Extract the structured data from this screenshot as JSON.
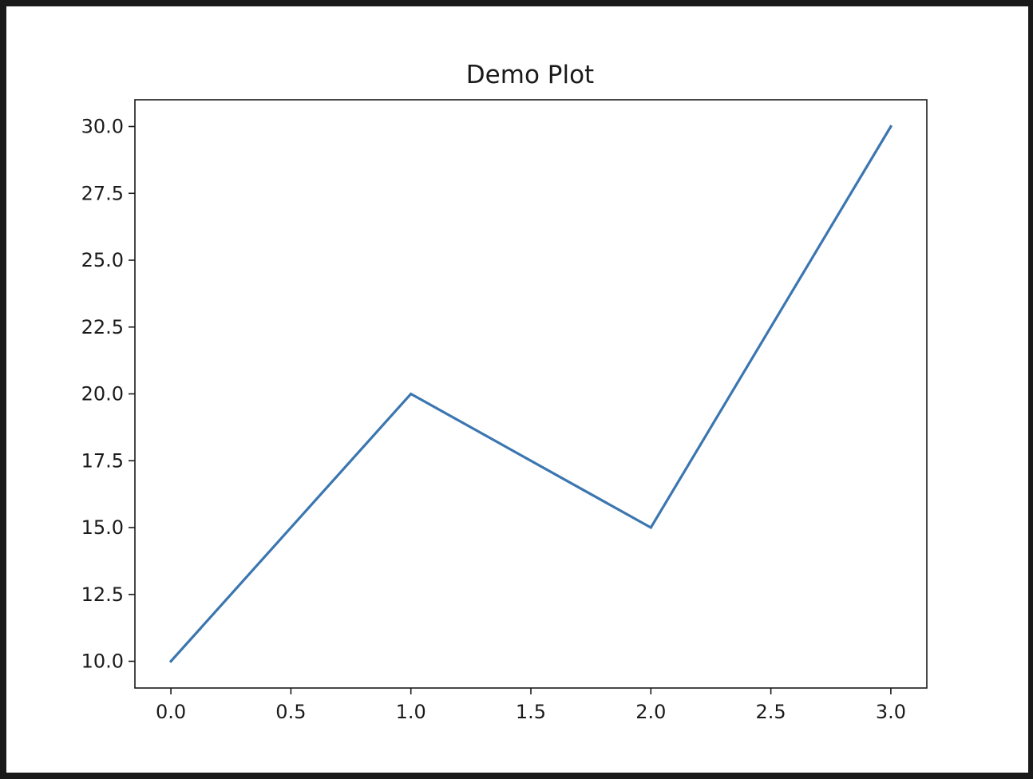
{
  "chart_data": {
    "type": "line",
    "title": "Demo Plot",
    "xlabel": "",
    "ylabel": "",
    "xlim": [
      -0.15,
      3.15
    ],
    "ylim": [
      9.0,
      31.0
    ],
    "x_ticks": [
      0.0,
      0.5,
      1.0,
      1.5,
      2.0,
      2.5,
      3.0
    ],
    "x_tick_labels": [
      "0.0",
      "0.5",
      "1.0",
      "1.5",
      "2.0",
      "2.5",
      "3.0"
    ],
    "y_ticks": [
      10.0,
      12.5,
      15.0,
      17.5,
      20.0,
      22.5,
      25.0,
      27.5,
      30.0
    ],
    "y_tick_labels": [
      "10.0",
      "12.5",
      "15.0",
      "17.5",
      "20.0",
      "22.5",
      "25.0",
      "27.5",
      "30.0"
    ],
    "grid": false,
    "series": [
      {
        "x": [
          0,
          1,
          2,
          3
        ],
        "y": [
          10,
          20,
          15,
          30
        ],
        "color": "#3b76b0"
      }
    ]
  }
}
